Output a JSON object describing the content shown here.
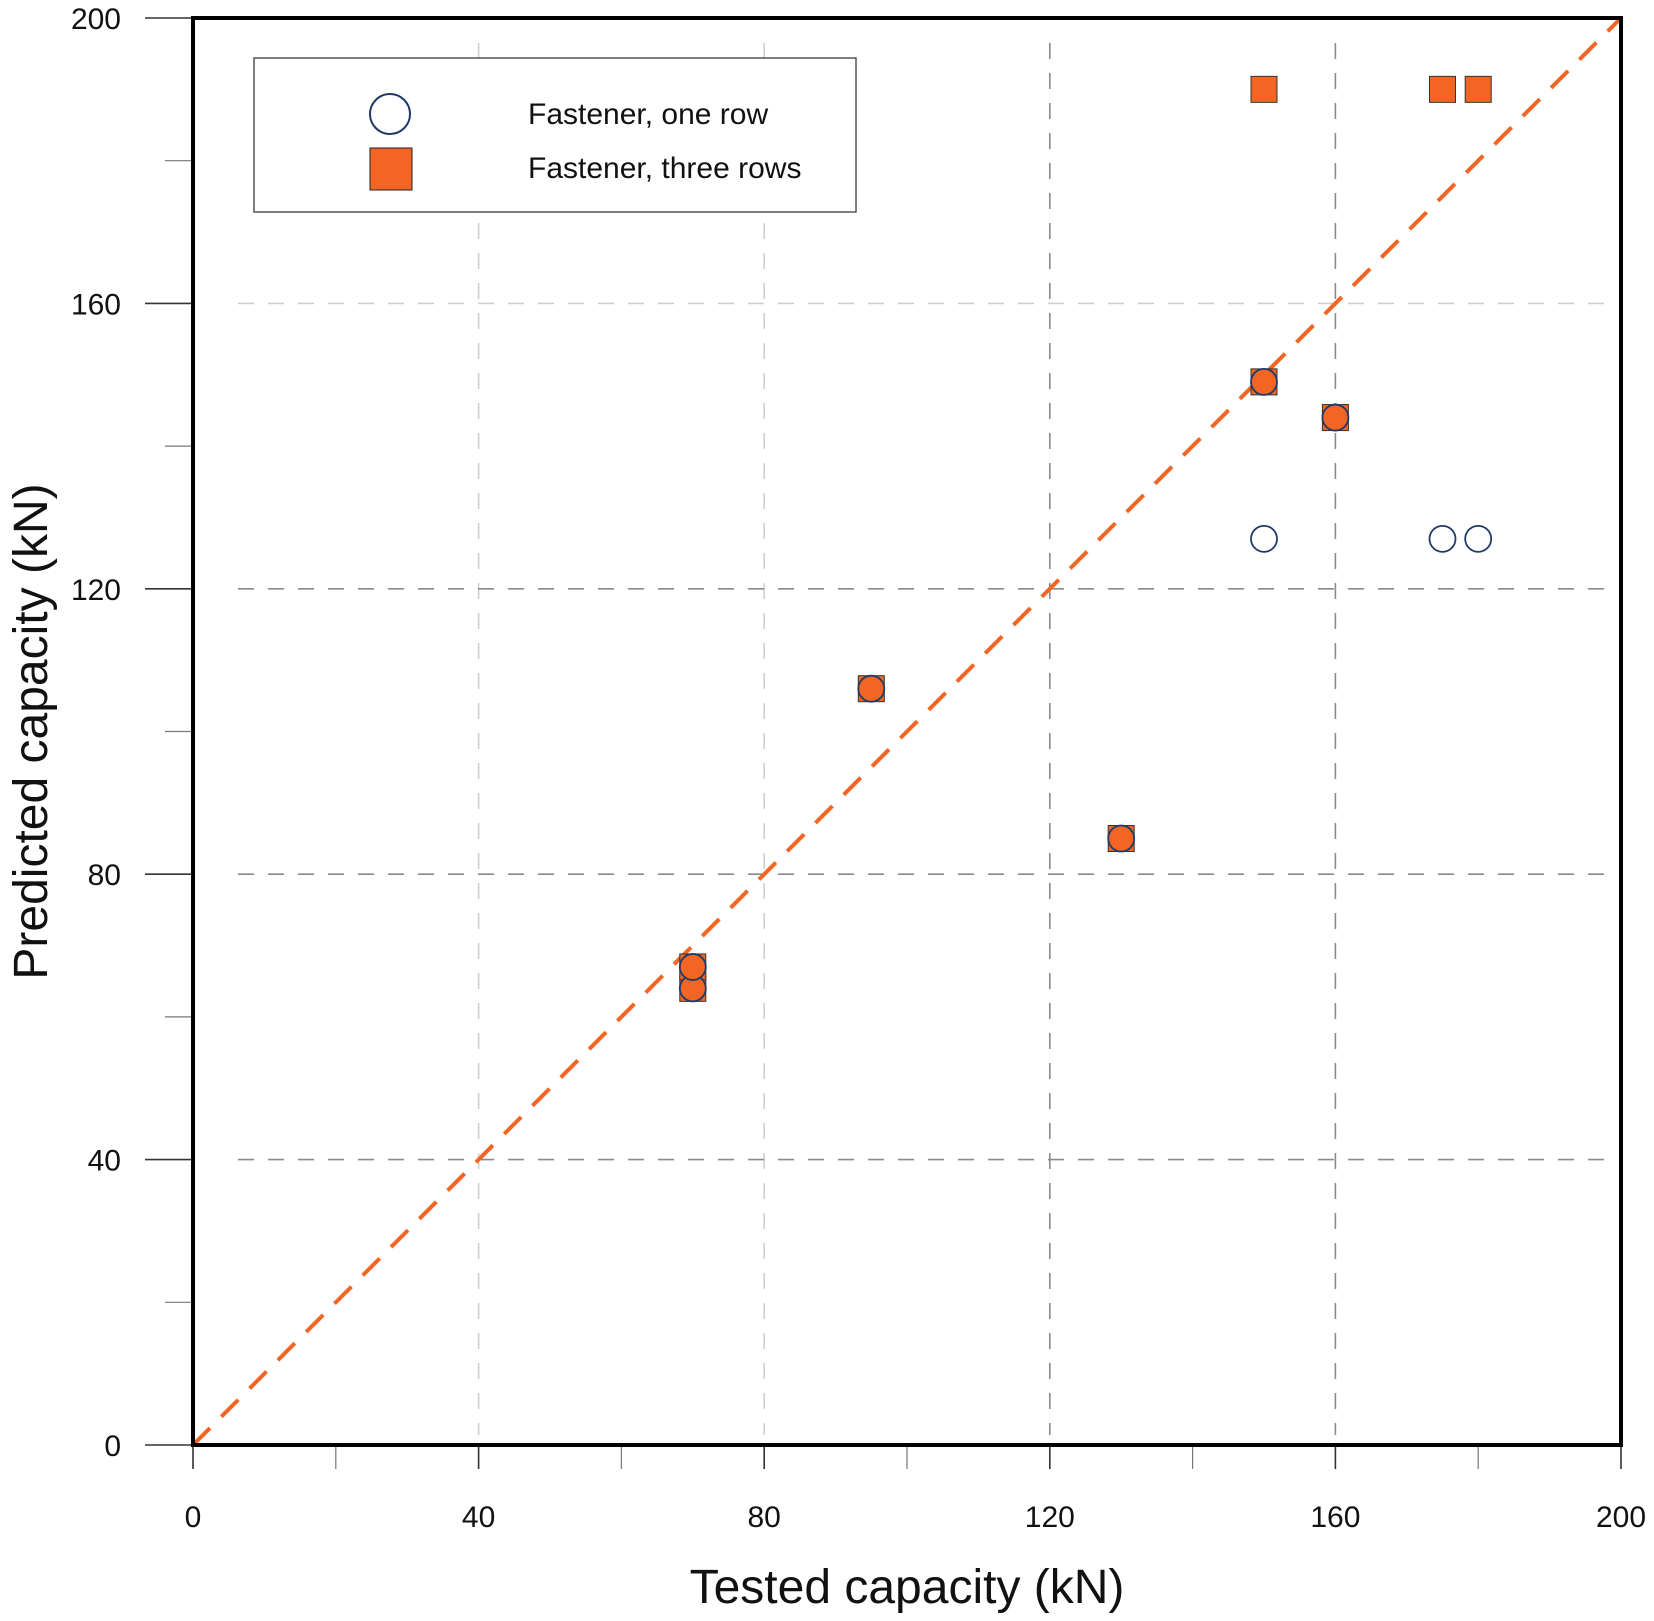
{
  "chart_data": {
    "type": "scatter",
    "title": "",
    "xlabel": "Tested capacity (kN)",
    "ylabel": "Predicted capacity (kN)",
    "xlim": [
      0,
      200
    ],
    "ylim": [
      0,
      200
    ],
    "xticks": [
      0,
      40,
      80,
      120,
      160,
      200
    ],
    "yticks": [
      0,
      40,
      80,
      120,
      160,
      200
    ],
    "minor_ticks": [
      20,
      60,
      100,
      140,
      180
    ],
    "grid": true,
    "legend_position": "top-left",
    "reference_line": {
      "label": "1:1 line",
      "from": [
        0,
        0
      ],
      "to": [
        200,
        200
      ],
      "color": "#f26522",
      "style": "dashed"
    },
    "series": [
      {
        "name": "Fastener, one row",
        "marker": "open-circle",
        "color": "#1f3a68",
        "points": [
          [
            70,
            64
          ],
          [
            70,
            67
          ],
          [
            95,
            106
          ],
          [
            130,
            85
          ],
          [
            150,
            149
          ],
          [
            160,
            144
          ],
          [
            150,
            127
          ],
          [
            175,
            127
          ],
          [
            180,
            127
          ]
        ]
      },
      {
        "name": "Fastener, three rows",
        "marker": "filled-square",
        "color": "#f26522",
        "points": [
          [
            70,
            64
          ],
          [
            70,
            67
          ],
          [
            95,
            106
          ],
          [
            130,
            85
          ],
          [
            150,
            149
          ],
          [
            160,
            144
          ],
          [
            150,
            190
          ],
          [
            175,
            190
          ],
          [
            180,
            190
          ]
        ]
      }
    ]
  }
}
